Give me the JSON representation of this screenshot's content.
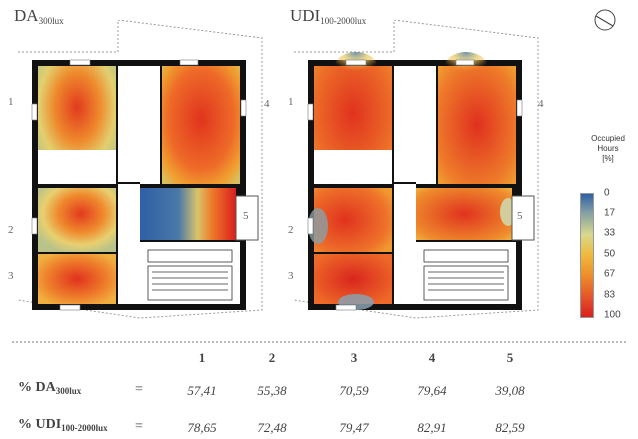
{
  "titles": {
    "left_main": "DA",
    "left_sub": "300lux",
    "right_main": "UDI",
    "right_sub": "100-2000lux"
  },
  "room_labels": {
    "r1": "1",
    "r2": "2",
    "r3": "3",
    "r4": "4",
    "r5": "5"
  },
  "legend": {
    "title_line1": "Occupied",
    "title_line2": "Hours",
    "title_line3": "[%]",
    "ticks": [
      "0",
      "17",
      "33",
      "50",
      "67",
      "83",
      "100"
    ]
  },
  "table": {
    "columns": [
      "1",
      "2",
      "3",
      "4",
      "5"
    ],
    "rows": [
      {
        "label_main": "% DA",
        "label_sub": "300lux",
        "eq": "=",
        "values": [
          "57,41",
          "55,38",
          "70,59",
          "79,64",
          "39,08"
        ]
      },
      {
        "label_main": "% UDI",
        "label_sub": "100-2000lux",
        "eq": "=",
        "values": [
          "78,65",
          "72,48",
          "79,47",
          "82,91",
          "82,59"
        ]
      }
    ]
  },
  "colors": {
    "wall": "#111111",
    "blue": "#2f5fa6",
    "red": "#d91e1e",
    "orange": "#ef7b2a",
    "yellow": "#e8d070"
  }
}
